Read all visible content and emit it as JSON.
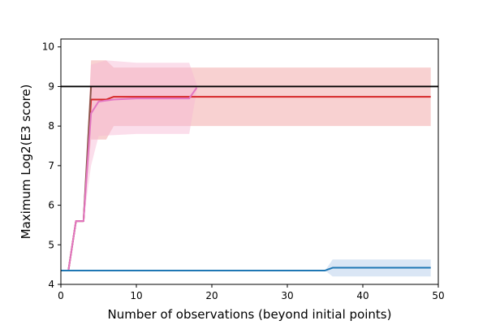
{
  "chart_data": {
    "type": "line",
    "title": "",
    "xlabel": "Number of observations (beyond initial points)",
    "ylabel": "Maximum Log2(E3 score)",
    "xlim": [
      0,
      50
    ],
    "ylim": [
      4,
      10.2
    ],
    "xticks": [
      0,
      10,
      20,
      30,
      40,
      50
    ],
    "yticks": [
      4,
      5,
      6,
      7,
      8,
      9,
      10
    ],
    "grid": false,
    "legend": "none",
    "reference_line": {
      "y": 9,
      "color": "#000000"
    },
    "series": [
      {
        "color": "#d62728",
        "fill_color": "#ef9a9a",
        "points": [
          [
            0,
            4.35
          ],
          [
            1,
            4.35
          ],
          [
            2,
            5.6
          ],
          [
            3,
            5.6
          ],
          [
            4,
            8.67
          ],
          [
            5,
            8.67
          ],
          [
            6,
            8.67
          ],
          [
            7,
            8.74
          ],
          [
            10,
            8.74
          ],
          [
            20,
            8.74
          ],
          [
            30,
            8.74
          ],
          [
            40,
            8.74
          ],
          [
            49,
            8.74
          ]
        ],
        "upper": [
          [
            0,
            4.35
          ],
          [
            1,
            4.35
          ],
          [
            2,
            5.6
          ],
          [
            3,
            5.6
          ],
          [
            4,
            9.66
          ],
          [
            6,
            9.66
          ],
          [
            7,
            9.48
          ],
          [
            49,
            9.48
          ]
        ],
        "lower": [
          [
            0,
            4.35
          ],
          [
            1,
            4.35
          ],
          [
            2,
            5.6
          ],
          [
            3,
            5.6
          ],
          [
            4,
            7.66
          ],
          [
            6,
            7.66
          ],
          [
            7,
            8.0
          ],
          [
            49,
            8.0
          ]
        ]
      },
      {
        "color": "#8c564b",
        "fill_color": "#c49c94",
        "points": [
          [
            0,
            4.35
          ],
          [
            1,
            4.35
          ],
          [
            2,
            5.6
          ],
          [
            3,
            5.6
          ],
          [
            4,
            9.0
          ]
        ],
        "upper": [
          [
            0,
            4.35
          ],
          [
            1,
            4.35
          ],
          [
            2,
            5.6
          ],
          [
            3,
            5.6
          ],
          [
            4,
            9.0
          ]
        ],
        "lower": [
          [
            0,
            4.35
          ],
          [
            1,
            4.35
          ],
          [
            2,
            5.6
          ],
          [
            3,
            5.6
          ],
          [
            4,
            9.0
          ]
        ]
      },
      {
        "color": "#e377c2",
        "fill_color": "#f7b6d2",
        "points": [
          [
            0,
            4.35
          ],
          [
            1,
            4.35
          ],
          [
            2,
            5.6
          ],
          [
            3,
            5.6
          ],
          [
            4,
            8.32
          ],
          [
            5,
            8.62
          ],
          [
            7,
            8.67
          ],
          [
            10,
            8.7
          ],
          [
            17,
            8.7
          ],
          [
            18,
            8.97
          ]
        ],
        "upper": [
          [
            0,
            4.35
          ],
          [
            1,
            4.35
          ],
          [
            2,
            5.6
          ],
          [
            3,
            5.6
          ],
          [
            4,
            9.55
          ],
          [
            6,
            9.66
          ],
          [
            10,
            9.6
          ],
          [
            17,
            9.6
          ],
          [
            18,
            9.05
          ]
        ],
        "lower": [
          [
            0,
            4.35
          ],
          [
            1,
            4.35
          ],
          [
            2,
            5.6
          ],
          [
            3,
            5.6
          ],
          [
            4,
            7.0
          ],
          [
            5,
            7.75
          ],
          [
            10,
            7.8
          ],
          [
            17,
            7.8
          ],
          [
            18,
            8.9
          ]
        ]
      },
      {
        "color": "#1f77b4",
        "fill_color": "#aec7e8",
        "points": [
          [
            0,
            4.35
          ],
          [
            10,
            4.35
          ],
          [
            20,
            4.35
          ],
          [
            30,
            4.35
          ],
          [
            35,
            4.35
          ],
          [
            36,
            4.42
          ],
          [
            40,
            4.42
          ],
          [
            49,
            4.42
          ]
        ],
        "upper": [
          [
            0,
            4.35
          ],
          [
            35,
            4.35
          ],
          [
            36,
            4.63
          ],
          [
            49,
            4.63
          ]
        ],
        "lower": [
          [
            0,
            4.35
          ],
          [
            35,
            4.35
          ],
          [
            36,
            4.2
          ],
          [
            49,
            4.2
          ]
        ]
      }
    ]
  }
}
